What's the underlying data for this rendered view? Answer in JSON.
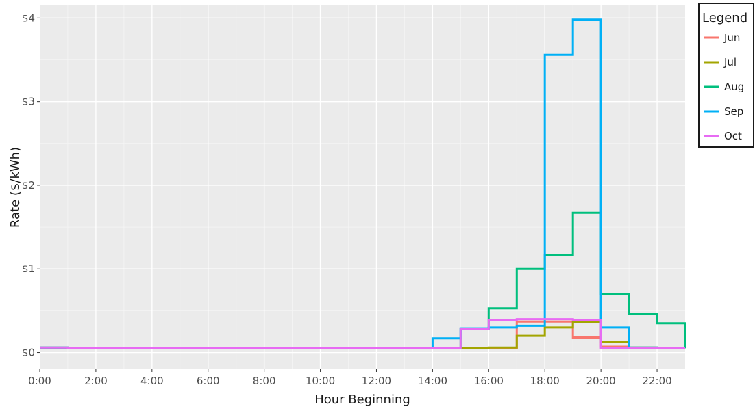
{
  "chart_data": {
    "type": "line",
    "step": true,
    "xlabel": "Hour Beginning",
    "ylabel": "Rate ($/kWh)",
    "xlim": [
      0,
      23
    ],
    "ylim": [
      -0.2,
      4.15
    ],
    "x_ticks": [
      0,
      2,
      4,
      6,
      8,
      10,
      12,
      14,
      16,
      18,
      20,
      22
    ],
    "x_tick_labels": [
      "0:00",
      "2:00",
      "4:00",
      "6:00",
      "8:00",
      "10:00",
      "12:00",
      "14:00",
      "16:00",
      "18:00",
      "20:00",
      "22:00"
    ],
    "y_ticks": [
      0,
      1,
      2,
      3,
      4
    ],
    "y_tick_labels": [
      "$0",
      "$1",
      "$2",
      "$3",
      "$4"
    ],
    "grid": true,
    "legend_title": "Legend",
    "legend_position": "right",
    "x": [
      0,
      1,
      2,
      3,
      4,
      5,
      6,
      7,
      8,
      9,
      10,
      11,
      12,
      13,
      14,
      15,
      16,
      17,
      18,
      19,
      20,
      21,
      22,
      23
    ],
    "series": [
      {
        "name": "Jun",
        "color": "#F8766D",
        "values": [
          0.06,
          0.05,
          0.05,
          0.05,
          0.05,
          0.05,
          0.05,
          0.05,
          0.05,
          0.05,
          0.05,
          0.05,
          0.05,
          0.05,
          0.05,
          0.05,
          0.05,
          0.37,
          0.37,
          0.18,
          0.07,
          0.06,
          0.05,
          0.05
        ]
      },
      {
        "name": "Jul",
        "color": "#A3A500",
        "values": [
          0.06,
          0.05,
          0.05,
          0.05,
          0.05,
          0.05,
          0.05,
          0.05,
          0.05,
          0.05,
          0.05,
          0.05,
          0.05,
          0.05,
          0.05,
          0.05,
          0.06,
          0.2,
          0.3,
          0.36,
          0.13,
          0.06,
          0.05,
          0.05
        ]
      },
      {
        "name": "Aug",
        "color": "#00BF7D",
        "values": [
          0.06,
          0.05,
          0.05,
          0.05,
          0.05,
          0.05,
          0.05,
          0.05,
          0.05,
          0.05,
          0.05,
          0.05,
          0.05,
          0.05,
          0.05,
          0.28,
          0.53,
          1.0,
          1.17,
          1.67,
          0.7,
          0.46,
          0.35,
          0.05
        ]
      },
      {
        "name": "Sep",
        "color": "#00B0F6",
        "values": [
          0.06,
          0.05,
          0.05,
          0.05,
          0.05,
          0.05,
          0.05,
          0.05,
          0.05,
          0.05,
          0.05,
          0.05,
          0.05,
          0.05,
          0.17,
          0.29,
          0.3,
          0.32,
          3.56,
          3.98,
          0.3,
          0.06,
          0.05,
          0.05
        ]
      },
      {
        "name": "Oct",
        "color": "#E76BF3",
        "values": [
          0.06,
          0.05,
          0.05,
          0.05,
          0.05,
          0.05,
          0.05,
          0.05,
          0.05,
          0.05,
          0.05,
          0.05,
          0.05,
          0.05,
          0.05,
          0.28,
          0.39,
          0.4,
          0.4,
          0.39,
          0.05,
          0.05,
          0.05,
          0.05
        ]
      }
    ]
  }
}
